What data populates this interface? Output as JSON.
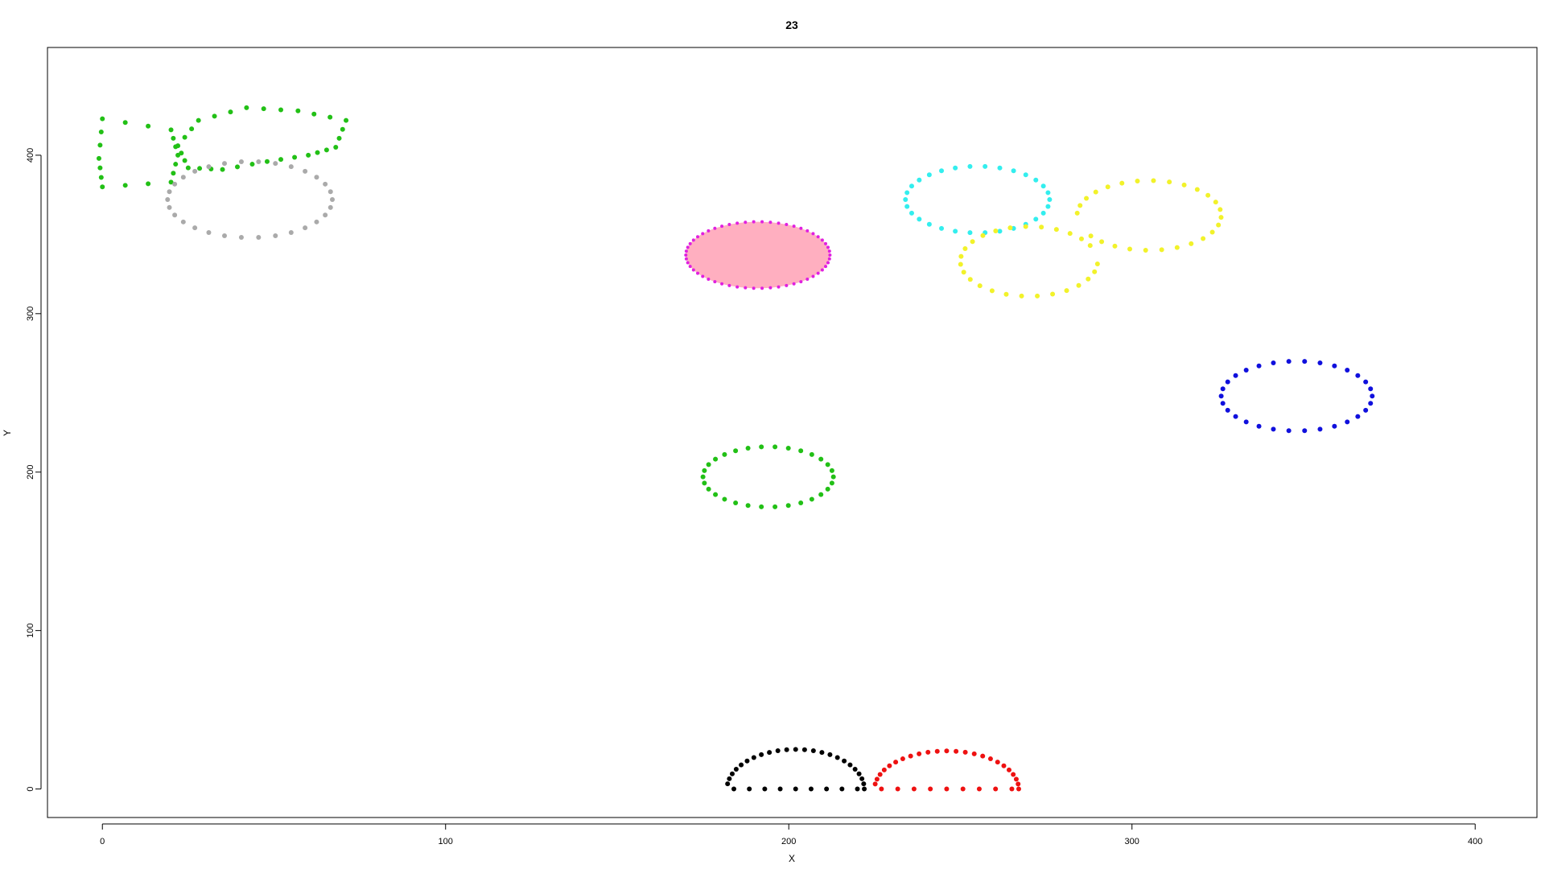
{
  "chart_data": {
    "type": "scatter",
    "title": "23",
    "xlabel": "X",
    "ylabel": "Y",
    "xlim": [
      -16,
      418
    ],
    "ylim": [
      -18,
      468
    ],
    "xticks": [
      0,
      100,
      200,
      300,
      400
    ],
    "yticks": [
      0,
      100,
      200,
      300,
      400
    ],
    "grid": false,
    "series": [
      {
        "name": "green-left-box",
        "color": "#22c016",
        "shape": "polygon",
        "vertices": [
          [
            0,
            423
          ],
          [
            20,
            416
          ],
          [
            22,
            400
          ],
          [
            20,
            383
          ],
          [
            0,
            380
          ],
          [
            -1,
            398
          ]
        ]
      },
      {
        "name": "green-fish",
        "color": "#22c016",
        "shape": "fish",
        "vertices": [
          [
            22,
            406
          ],
          [
            28,
            422
          ],
          [
            42,
            430
          ],
          [
            57,
            428
          ],
          [
            71,
            422
          ],
          [
            68,
            405
          ],
          [
            60,
            400
          ],
          [
            48,
            396
          ],
          [
            35,
            391
          ],
          [
            25,
            392
          ]
        ]
      },
      {
        "name": "gray-ellipse",
        "color": "#aaaaaa",
        "shape": "ellipse",
        "cx": 43,
        "cy": 372,
        "rx": 24,
        "ry": 24
      },
      {
        "name": "magenta-ellipse",
        "color": "#e020e0",
        "fill": "#ffafc0",
        "shape": "ellipse",
        "cx": 191,
        "cy": 337,
        "rx": 21,
        "ry": 21
      },
      {
        "name": "cyan-ellipse",
        "color": "#33eeee",
        "shape": "ellipse",
        "cx": 255,
        "cy": 372,
        "rx": 21,
        "ry": 21
      },
      {
        "name": "yellow-shape",
        "color": "#f2f22a",
        "shape": "ellipse-pair",
        "cx": 270,
        "cy": 333,
        "rx": 20,
        "ry": 22,
        "cx2": 305,
        "cy2": 362,
        "rx2": 21,
        "ry2": 22
      },
      {
        "name": "blue-ellipse",
        "color": "#1010dd",
        "shape": "ellipse",
        "cx": 348,
        "cy": 248,
        "rx": 22,
        "ry": 22
      },
      {
        "name": "green-ellipse",
        "color": "#22c016",
        "shape": "ellipse",
        "cx": 194,
        "cy": 197,
        "rx": 19,
        "ry": 19
      },
      {
        "name": "black-half",
        "color": "#000000",
        "shape": "half-ellipse",
        "cx": 202,
        "cy": 0,
        "rx": 20,
        "ry": 25
      },
      {
        "name": "red-half",
        "color": "#ee1111",
        "shape": "half-ellipse",
        "cx": 246,
        "cy": 0,
        "rx": 21,
        "ry": 24
      }
    ]
  }
}
